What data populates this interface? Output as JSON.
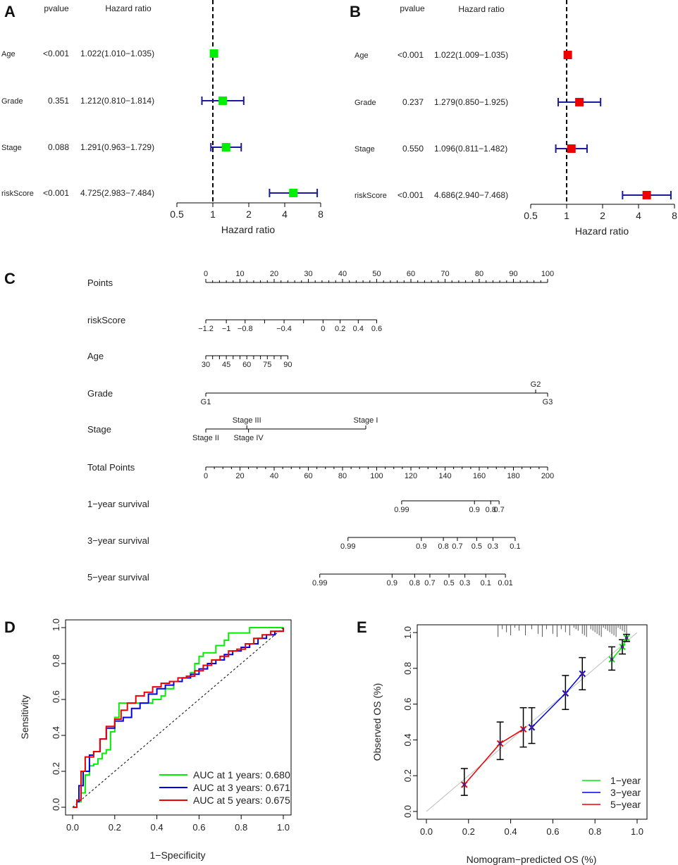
{
  "chart_data": [
    {
      "id": "A",
      "type": "forest",
      "panel_label": "A",
      "col_headers": {
        "pvalue": "pvalue",
        "hr": "Hazard ratio"
      },
      "xlabel": "Hazard ratio",
      "ticks": [
        "0.5",
        "1",
        "2",
        "4",
        "8"
      ],
      "marker_color": "#00ee00",
      "rows": [
        {
          "label": "Age",
          "pvalue": "<0.001",
          "hr_text": "1.022(1.010−1.035)",
          "hr": 1.022,
          "lo": 1.01,
          "hi": 1.035
        },
        {
          "label": "Grade",
          "pvalue": "0.351",
          "hr_text": "1.212(0.810−1.814)",
          "hr": 1.212,
          "lo": 0.81,
          "hi": 1.814
        },
        {
          "label": "Stage",
          "pvalue": "0.088",
          "hr_text": "1.291(0.963−1.729)",
          "hr": 1.291,
          "lo": 0.963,
          "hi": 1.729
        },
        {
          "label": "riskScore",
          "pvalue": "<0.001",
          "hr_text": "4.725(2.983−7.484)",
          "hr": 4.725,
          "lo": 2.983,
          "hi": 7.484
        }
      ]
    },
    {
      "id": "B",
      "type": "forest",
      "panel_label": "B",
      "col_headers": {
        "pvalue": "pvalue",
        "hr": "Hazard ratio"
      },
      "xlabel": "Hazard ratio",
      "ticks": [
        "0.5",
        "1",
        "2",
        "4",
        "8"
      ],
      "marker_color": "#ee0000",
      "rows": [
        {
          "label": "Age",
          "pvalue": "<0.001",
          "hr_text": "1.022(1.009−1.035)",
          "hr": 1.022,
          "lo": 1.009,
          "hi": 1.035
        },
        {
          "label": "Grade",
          "pvalue": "0.237",
          "hr_text": "1.279(0.850−1.925)",
          "hr": 1.279,
          "lo": 0.85,
          "hi": 1.925
        },
        {
          "label": "Stage",
          "pvalue": "0.550",
          "hr_text": "1.096(0.811−1.482)",
          "hr": 1.096,
          "lo": 0.811,
          "hi": 1.482
        },
        {
          "label": "riskScore",
          "pvalue": "<0.001",
          "hr_text": "4.686(2.940−7.468)",
          "hr": 4.686,
          "lo": 2.94,
          "hi": 7.468
        }
      ]
    },
    {
      "id": "C",
      "type": "nomogram",
      "panel_label": "C",
      "rows": [
        {
          "label": "Points",
          "scale": [
            0,
            100
          ],
          "ticks": [
            {
              "v": 0,
              "t": "0"
            },
            {
              "v": 10,
              "t": "10"
            },
            {
              "v": 20,
              "t": "20"
            },
            {
              "v": 30,
              "t": "30"
            },
            {
              "v": 40,
              "t": "40"
            },
            {
              "v": 50,
              "t": "50"
            },
            {
              "v": 60,
              "t": "60"
            },
            {
              "v": 70,
              "t": "70"
            },
            {
              "v": 80,
              "t": "80"
            },
            {
              "v": 90,
              "t": "90"
            },
            {
              "v": 100,
              "t": "100"
            }
          ],
          "minor_step": 2,
          "labels_above": true
        },
        {
          "label": "riskScore",
          "pts_range": [
            0,
            50
          ],
          "ticks": [
            {
              "p": 0,
              "t": "−1.2"
            },
            {
              "p": 6,
              "t": "−1"
            },
            {
              "p": 11.5,
              "t": "−0.8"
            },
            {
              "p": 17.2,
              "t": ""
            },
            {
              "p": 22.9,
              "t": "−0.4"
            },
            {
              "p": 28.6,
              "t": ""
            },
            {
              "p": 34.3,
              "t": "0"
            },
            {
              "p": 39.3,
              "t": "0.2"
            },
            {
              "p": 44.6,
              "t": "0.4"
            },
            {
              "p": 50,
              "t": "0.6"
            }
          ]
        },
        {
          "label": "Age",
          "ticks": [
            {
              "p": 0,
              "t": "30"
            },
            {
              "p": 2,
              "t": ""
            },
            {
              "p": 4,
              "t": ""
            },
            {
              "p": 6,
              "t": "45"
            },
            {
              "p": 8,
              "t": ""
            },
            {
              "p": 10,
              "t": ""
            },
            {
              "p": 12,
              "t": "60"
            },
            {
              "p": 14,
              "t": ""
            },
            {
              "p": 16,
              "t": ""
            },
            {
              "p": 18,
              "t": "75"
            },
            {
              "p": 20,
              "t": ""
            },
            {
              "p": 22,
              "t": ""
            },
            {
              "p": 24,
              "t": "90"
            }
          ]
        },
        {
          "label": "Grade",
          "ticks": [
            {
              "p": 0,
              "t": "G1",
              "below": true
            },
            {
              "p": 96.5,
              "t": "G2",
              "below": false
            },
            {
              "p": 100,
              "t": "G3",
              "below": true
            }
          ]
        },
        {
          "label": "Stage",
          "ticks": [
            {
              "p": 0,
              "t": "Stage II",
              "below": true
            },
            {
              "p": 12,
              "t": "Stage III",
              "below": false
            },
            {
              "p": 12.5,
              "t": "Stage IV",
              "below": true
            },
            {
              "p": 46.8,
              "t": "Stage I",
              "below": false
            }
          ]
        },
        {
          "label": "Total Points",
          "scale": [
            0,
            200
          ],
          "ticks": [
            {
              "v": 0,
              "t": "0"
            },
            {
              "v": 20,
              "t": "20"
            },
            {
              "v": 40,
              "t": "40"
            },
            {
              "v": 60,
              "t": "60"
            },
            {
              "v": 80,
              "t": "80"
            },
            {
              "v": 100,
              "t": "100"
            },
            {
              "v": 120,
              "t": "120"
            },
            {
              "v": 140,
              "t": "140"
            },
            {
              "v": 160,
              "t": "160"
            },
            {
              "v": 180,
              "t": "180"
            },
            {
              "v": 200,
              "t": "200"
            }
          ],
          "minor_step": 5
        },
        {
          "label": "1−year survival",
          "tp_ticks": [
            {
              "v": 114.6,
              "t": "0.99"
            },
            {
              "v": 157.2,
              "t": "0.9"
            },
            {
              "v": 166.7,
              "t": "0.8"
            },
            {
              "v": 171.6,
              "t": "0.7"
            }
          ]
        },
        {
          "label": "3−year survival",
          "tp_ticks": [
            {
              "v": 83.2,
              "t": "0.99"
            },
            {
              "v": 126.1,
              "t": "0.9"
            },
            {
              "v": 139,
              "t": "0.8"
            },
            {
              "v": 147.2,
              "t": "0.7"
            },
            {
              "v": 158.5,
              "t": "0.5"
            },
            {
              "v": 168,
              "t": "0.3"
            },
            {
              "v": 181,
              "t": "0.1"
            }
          ]
        },
        {
          "label": "5−year survival",
          "tp_ticks": [
            {
              "v": 66.7,
              "t": "0.99"
            },
            {
              "v": 109,
              "t": "0.9"
            },
            {
              "v": 122.2,
              "t": "0.8"
            },
            {
              "v": 131.1,
              "t": "0.7"
            },
            {
              "v": 142.3,
              "t": "0.5"
            },
            {
              "v": 151.6,
              "t": "0.3"
            },
            {
              "v": 163.8,
              "t": "0.1"
            },
            {
              "v": 175.3,
              "t": "0.01"
            }
          ]
        }
      ]
    },
    {
      "id": "D",
      "type": "line",
      "panel_label": "D",
      "xlabel": "1−Specificity",
      "ylabel": "Sensitivity",
      "xlim": [
        0,
        1
      ],
      "ylim": [
        0,
        1
      ],
      "ticks": [
        "0.0",
        "0.2",
        "0.4",
        "0.6",
        "0.8",
        "1.0"
      ],
      "legend_position": "bottom-right",
      "series": [
        {
          "name": "AUC at 1 years: 0.680",
          "color": "#00ee00",
          "points": [
            [
              0,
              0
            ],
            [
              0.02,
              0.03
            ],
            [
              0.04,
              0.08
            ],
            [
              0.06,
              0.18
            ],
            [
              0.08,
              0.23
            ],
            [
              0.1,
              0.24
            ],
            [
              0.12,
              0.27
            ],
            [
              0.14,
              0.3
            ],
            [
              0.16,
              0.32
            ],
            [
              0.18,
              0.42
            ],
            [
              0.2,
              0.5
            ],
            [
              0.22,
              0.58
            ],
            [
              0.26,
              0.58
            ],
            [
              0.3,
              0.58
            ],
            [
              0.34,
              0.58
            ],
            [
              0.38,
              0.6
            ],
            [
              0.42,
              0.62
            ],
            [
              0.44,
              0.66
            ],
            [
              0.48,
              0.7
            ],
            [
              0.52,
              0.72
            ],
            [
              0.56,
              0.75
            ],
            [
              0.58,
              0.8
            ],
            [
              0.6,
              0.84
            ],
            [
              0.62,
              0.86
            ],
            [
              0.66,
              0.86
            ],
            [
              0.68,
              0.9
            ],
            [
              0.72,
              0.93
            ],
            [
              0.74,
              0.97
            ],
            [
              0.8,
              0.97
            ],
            [
              0.84,
              1
            ],
            [
              0.92,
              1
            ],
            [
              1,
              1
            ]
          ]
        },
        {
          "name": "AUC at 3 years: 0.671",
          "color": "#0000ee",
          "points": [
            [
              0,
              0
            ],
            [
              0.02,
              0.03
            ],
            [
              0.03,
              0.12
            ],
            [
              0.05,
              0.2
            ],
            [
              0.08,
              0.29
            ],
            [
              0.1,
              0.31
            ],
            [
              0.13,
              0.38
            ],
            [
              0.16,
              0.44
            ],
            [
              0.2,
              0.48
            ],
            [
              0.24,
              0.5
            ],
            [
              0.28,
              0.55
            ],
            [
              0.32,
              0.58
            ],
            [
              0.36,
              0.63
            ],
            [
              0.4,
              0.66
            ],
            [
              0.44,
              0.68
            ],
            [
              0.48,
              0.7
            ],
            [
              0.52,
              0.72
            ],
            [
              0.56,
              0.74
            ],
            [
              0.6,
              0.77
            ],
            [
              0.64,
              0.8
            ],
            [
              0.68,
              0.82
            ],
            [
              0.72,
              0.85
            ],
            [
              0.76,
              0.87
            ],
            [
              0.8,
              0.89
            ],
            [
              0.84,
              0.91
            ],
            [
              0.88,
              0.94
            ],
            [
              0.92,
              0.96
            ],
            [
              0.96,
              0.98
            ],
            [
              1,
              1
            ]
          ]
        },
        {
          "name": "AUC at 5 years: 0.675",
          "color": "#ee0000",
          "points": [
            [
              0,
              0
            ],
            [
              0.02,
              0.04
            ],
            [
              0.04,
              0.2
            ],
            [
              0.06,
              0.28
            ],
            [
              0.1,
              0.31
            ],
            [
              0.13,
              0.38
            ],
            [
              0.16,
              0.45
            ],
            [
              0.2,
              0.49
            ],
            [
              0.23,
              0.54
            ],
            [
              0.26,
              0.58
            ],
            [
              0.3,
              0.62
            ],
            [
              0.34,
              0.64
            ],
            [
              0.38,
              0.67
            ],
            [
              0.42,
              0.69
            ],
            [
              0.46,
              0.7
            ],
            [
              0.5,
              0.72
            ],
            [
              0.54,
              0.73
            ],
            [
              0.58,
              0.76
            ],
            [
              0.62,
              0.79
            ],
            [
              0.66,
              0.82
            ],
            [
              0.7,
              0.84
            ],
            [
              0.74,
              0.87
            ],
            [
              0.78,
              0.88
            ],
            [
              0.82,
              0.91
            ],
            [
              0.86,
              0.94
            ],
            [
              0.9,
              0.96
            ],
            [
              0.94,
              0.98
            ],
            [
              1,
              1
            ]
          ]
        }
      ]
    },
    {
      "id": "E",
      "type": "scatter",
      "panel_label": "E",
      "xlabel": "Nomogram−predicted OS (%)",
      "ylabel": "Observed OS (%)",
      "xlim": [
        0,
        1
      ],
      "ylim": [
        0,
        1
      ],
      "ticks": [
        "0.0",
        "0.2",
        "0.4",
        "0.6",
        "0.8",
        "1.0"
      ],
      "legend_position": "bottom-right",
      "series": [
        {
          "name": "1−year",
          "color": "#00ee00",
          "points": [
            {
              "x": 0.88,
              "y": 0.85,
              "lo": 0.79,
              "hi": 0.92
            },
            {
              "x": 0.93,
              "y": 0.92,
              "lo": 0.88,
              "hi": 0.96
            },
            {
              "x": 0.95,
              "y": 0.97,
              "lo": 0.95,
              "hi": 0.99
            }
          ]
        },
        {
          "name": "3−year",
          "color": "#0000ee",
          "points": [
            {
              "x": 0.5,
              "y": 0.47,
              "lo": 0.38,
              "hi": 0.58
            },
            {
              "x": 0.66,
              "y": 0.66,
              "lo": 0.57,
              "hi": 0.76
            },
            {
              "x": 0.74,
              "y": 0.77,
              "lo": 0.68,
              "hi": 0.86
            }
          ]
        },
        {
          "name": "5−year",
          "color": "#ee0000",
          "points": [
            {
              "x": 0.18,
              "y": 0.15,
              "lo": 0.09,
              "hi": 0.24
            },
            {
              "x": 0.35,
              "y": 0.38,
              "lo": 0.29,
              "hi": 0.5
            },
            {
              "x": 0.46,
              "y": 0.46,
              "lo": 0.36,
              "hi": 0.58
            }
          ]
        }
      ],
      "rug": [
        0.34,
        0.36,
        0.38,
        0.4,
        0.42,
        0.44,
        0.47,
        0.5,
        0.53,
        0.55,
        0.57,
        0.6,
        0.62,
        0.64,
        0.66,
        0.68,
        0.7,
        0.71,
        0.72,
        0.74,
        0.75,
        0.76,
        0.78,
        0.79,
        0.8,
        0.81,
        0.82,
        0.83,
        0.84,
        0.85,
        0.86,
        0.87,
        0.88,
        0.89,
        0.9,
        0.91,
        0.92,
        0.93,
        0.94,
        0.95
      ]
    }
  ]
}
